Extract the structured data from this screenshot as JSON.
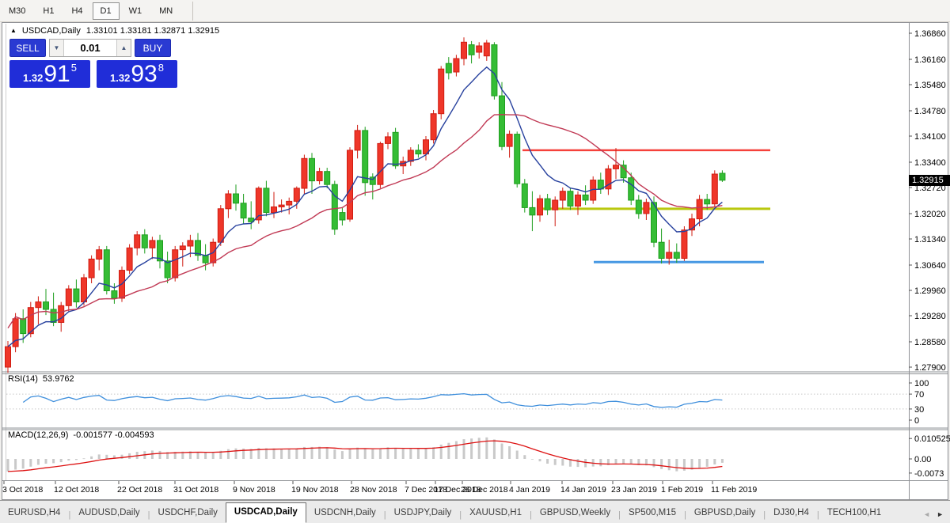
{
  "toolbar": {
    "timeframes": [
      {
        "label": "M30",
        "active": false
      },
      {
        "label": "H1",
        "active": false
      },
      {
        "label": "H4",
        "active": false
      },
      {
        "label": "D1",
        "active": true
      },
      {
        "label": "W1",
        "active": false
      },
      {
        "label": "MN",
        "active": false
      }
    ]
  },
  "header": {
    "collapse_icon": "▲",
    "symbol": "USDCAD,Daily",
    "ohlc": "1.33101 1.33181 1.32871 1.32915"
  },
  "trade_panel": {
    "sell_label": "SELL",
    "buy_label": "BUY",
    "volume": "0.01",
    "spinner_down_icon": "▼",
    "spinner_up_icon": "▲",
    "sell_price_prefix": "1.32",
    "sell_price_big": "91",
    "sell_price_sup": "5",
    "buy_price_prefix": "1.32",
    "buy_price_big": "93",
    "buy_price_sup": "8"
  },
  "price_axis": {
    "labels": [
      "1.36860",
      "1.36160",
      "1.35480",
      "1.34780",
      "1.34100",
      "1.33400",
      "1.32720",
      "1.32020",
      "1.31340",
      "1.30640",
      "1.29960",
      "1.29280",
      "1.28580",
      "1.27900"
    ],
    "current": "1.32915"
  },
  "time_axis": [
    "3 Oct 2018",
    "12 Oct 2018",
    "22 Oct 2018",
    "31 Oct 2018",
    "9 Nov 2018",
    "19 Nov 2018",
    "28 Nov 2018",
    "7 Dec 2018",
    "17 Dec 2018",
    "26 Dec 2018",
    "4 Jan 2019",
    "14 Jan 2019",
    "23 Jan 2019",
    "1 Feb 2019",
    "11 Feb 2019"
  ],
  "rsi_panel": {
    "label": "RSI(14)",
    "value": "53.9762",
    "axis": [
      "100",
      "70",
      "30",
      "0"
    ]
  },
  "macd_panel": {
    "label": "MACD(12,26,9)",
    "values": "-0.001577 -0.004593",
    "axis": [
      "0.010525",
      "0.00",
      "-0.0073"
    ]
  },
  "tabs": {
    "separator": "|",
    "scroll_left_icon": "◄",
    "scroll_right_icon": "►",
    "items": [
      {
        "label": "EURUSD,H4",
        "active": false
      },
      {
        "label": "AUDUSD,Daily",
        "active": false
      },
      {
        "label": "USDCHF,Daily",
        "active": false
      },
      {
        "label": "USDCAD,Daily",
        "active": true
      },
      {
        "label": "USDCNH,Daily",
        "active": false
      },
      {
        "label": "USDJPY,Daily",
        "active": false
      },
      {
        "label": "XAUUSD,H1",
        "active": false
      },
      {
        "label": "GBPUSD,Weekly",
        "active": false
      },
      {
        "label": "SP500,M15",
        "active": false
      },
      {
        "label": "GBPUSD,Daily",
        "active": false
      },
      {
        "label": "DJ30,H4",
        "active": false
      },
      {
        "label": "TECH100,H1",
        "active": false
      }
    ]
  },
  "chart_data": {
    "type": "candlestick",
    "symbol": "USDCAD",
    "timeframe": "Daily",
    "title": "USDCAD,Daily 1.33101 1.33181 1.32871 1.32915",
    "bull_color": "#ef3629",
    "bear_color": "#35bd35",
    "bull_border": "#cf1d12",
    "bear_border": "#1f9e1f",
    "ma_fast": {
      "period": 8,
      "color": "#27419e"
    },
    "ma_slow": {
      "period": 20,
      "color": "#c13a55"
    },
    "rsi": {
      "period": 14,
      "last": 53.9762,
      "color": "#3f8fdc",
      "levels": [
        70,
        30
      ]
    },
    "macd": {
      "fast": 12,
      "slow": 26,
      "signal": 9,
      "last_main": -0.001577,
      "last_signal": -0.004593,
      "hist_color": "#c9c9c9",
      "signal_color": "#dd1111",
      "ylim": [
        -0.0073,
        0.010525
      ]
    },
    "price_range": {
      "top": 1.3686,
      "bottom": 1.279
    },
    "last_price": 1.32915,
    "hlines": [
      {
        "name": "resistance-line",
        "color": "#f5413b",
        "price": 1.3372
      },
      {
        "name": "mid-support-line",
        "color": "#b9c80e",
        "price": 1.3215
      },
      {
        "name": "low-support-line",
        "color": "#4798e3",
        "price": 1.3072
      }
    ],
    "candles": [
      [
        1.279,
        1.286,
        1.2775,
        1.2845
      ],
      [
        1.2845,
        1.2935,
        1.283,
        1.292
      ],
      [
        1.292,
        1.2945,
        1.2855,
        1.288
      ],
      [
        1.288,
        1.2965,
        1.287,
        1.295
      ],
      [
        1.295,
        1.298,
        1.2905,
        1.2965
      ],
      [
        1.2965,
        1.3,
        1.293,
        1.2945
      ],
      [
        1.2945,
        1.299,
        1.29,
        1.291
      ],
      [
        1.291,
        1.2965,
        1.2885,
        1.2955
      ],
      [
        1.2955,
        1.301,
        1.294,
        1.3
      ],
      [
        1.3,
        1.3025,
        1.295,
        1.2965
      ],
      [
        1.2965,
        1.304,
        1.2955,
        1.303
      ],
      [
        1.303,
        1.309,
        1.3015,
        1.308
      ],
      [
        1.308,
        1.3115,
        1.305,
        1.3105
      ],
      [
        1.3105,
        1.3115,
        1.2985,
        1.2995
      ],
      [
        1.2995,
        1.3015,
        1.296,
        1.2975
      ],
      [
        1.2975,
        1.306,
        1.2965,
        1.305
      ],
      [
        1.305,
        1.312,
        1.304,
        1.311
      ],
      [
        1.311,
        1.3155,
        1.309,
        1.3145
      ],
      [
        1.3145,
        1.316,
        1.3095,
        1.311
      ],
      [
        1.311,
        1.314,
        1.308,
        1.313
      ],
      [
        1.313,
        1.3145,
        1.3055,
        1.3075
      ],
      [
        1.3075,
        1.31,
        1.3015,
        1.303
      ],
      [
        1.303,
        1.3115,
        1.302,
        1.3105
      ],
      [
        1.3105,
        1.3125,
        1.306,
        1.3115
      ],
      [
        1.3115,
        1.3145,
        1.3085,
        1.313
      ],
      [
        1.313,
        1.315,
        1.3075,
        1.309
      ],
      [
        1.309,
        1.312,
        1.305,
        1.307
      ],
      [
        1.307,
        1.3135,
        1.306,
        1.3125
      ],
      [
        1.3125,
        1.3225,
        1.3115,
        1.3215
      ],
      [
        1.3215,
        1.3265,
        1.319,
        1.3255
      ],
      [
        1.3255,
        1.328,
        1.321,
        1.323
      ],
      [
        1.323,
        1.3255,
        1.3175,
        1.319
      ],
      [
        1.319,
        1.3235,
        1.316,
        1.318
      ],
      [
        1.3185,
        1.3275,
        1.3175,
        1.327
      ],
      [
        1.327,
        1.329,
        1.3195,
        1.3205
      ],
      [
        1.3205,
        1.326,
        1.319,
        1.322
      ],
      [
        1.322,
        1.324,
        1.3205,
        1.3225
      ],
      [
        1.3225,
        1.3245,
        1.32,
        1.3235
      ],
      [
        1.3235,
        1.3275,
        1.3215,
        1.327
      ],
      [
        1.327,
        1.336,
        1.3255,
        1.335
      ],
      [
        1.335,
        1.3365,
        1.3255,
        1.329
      ],
      [
        1.329,
        1.3325,
        1.328,
        1.3315
      ],
      [
        1.3315,
        1.3325,
        1.327,
        1.328
      ],
      [
        1.328,
        1.329,
        1.3145,
        1.316
      ],
      [
        1.3205,
        1.322,
        1.317,
        1.3185
      ],
      [
        1.3187,
        1.338,
        1.318,
        1.3372
      ],
      [
        1.3372,
        1.344,
        1.335,
        1.3425
      ],
      [
        1.3425,
        1.3435,
        1.325,
        1.3285
      ],
      [
        1.33,
        1.331,
        1.324,
        1.328
      ],
      [
        1.328,
        1.3395,
        1.327,
        1.339
      ],
      [
        1.339,
        1.342,
        1.3375,
        1.3408
      ],
      [
        1.342,
        1.3432,
        1.3322,
        1.333
      ],
      [
        1.333,
        1.3355,
        1.3308,
        1.3342
      ],
      [
        1.3342,
        1.338,
        1.333,
        1.3372
      ],
      [
        1.3372,
        1.3388,
        1.3352,
        1.3362
      ],
      [
        1.3362,
        1.341,
        1.3345,
        1.34
      ],
      [
        1.34,
        1.348,
        1.339,
        1.347
      ],
      [
        1.347,
        1.3598,
        1.3455,
        1.359
      ],
      [
        1.3605,
        1.3622,
        1.3562,
        1.358
      ],
      [
        1.3582,
        1.3628,
        1.357,
        1.3618
      ],
      [
        1.3618,
        1.3675,
        1.36,
        1.3662
      ],
      [
        1.3655,
        1.3665,
        1.3605,
        1.3628
      ],
      [
        1.3635,
        1.3662,
        1.3618,
        1.3652
      ],
      [
        1.3625,
        1.3668,
        1.3612,
        1.366
      ],
      [
        1.3655,
        1.3662,
        1.3508,
        1.3518
      ],
      [
        1.3518,
        1.3555,
        1.3372,
        1.3382
      ],
      [
        1.3382,
        1.3425,
        1.3352,
        1.3415
      ],
      [
        1.3415,
        1.3422,
        1.3272,
        1.3282
      ],
      [
        1.3282,
        1.3295,
        1.3205,
        1.3218
      ],
      [
        1.3218,
        1.3262,
        1.3155,
        1.3198
      ],
      [
        1.3198,
        1.3252,
        1.318,
        1.3242
      ],
      [
        1.3242,
        1.3255,
        1.3198,
        1.3212
      ],
      [
        1.3212,
        1.3248,
        1.3168,
        1.3238
      ],
      [
        1.3238,
        1.3272,
        1.3215,
        1.3262
      ],
      [
        1.3262,
        1.3272,
        1.3212,
        1.3222
      ],
      [
        1.3222,
        1.3262,
        1.3198,
        1.3252
      ],
      [
        1.3252,
        1.3278,
        1.3225,
        1.3238
      ],
      [
        1.3238,
        1.3302,
        1.3228,
        1.3292
      ],
      [
        1.3292,
        1.3312,
        1.3255,
        1.3268
      ],
      [
        1.3268,
        1.3332,
        1.3252,
        1.3322
      ],
      [
        1.3322,
        1.3378,
        1.3295,
        1.3332
      ],
      [
        1.3332,
        1.3345,
        1.3285,
        1.3298
      ],
      [
        1.3298,
        1.3312,
        1.3225,
        1.3238
      ],
      [
        1.3238,
        1.3252,
        1.3188,
        1.3202
      ],
      [
        1.3202,
        1.3242,
        1.3185,
        1.3232
      ],
      [
        1.3232,
        1.3248,
        1.3112,
        1.3125
      ],
      [
        1.3125,
        1.3162,
        1.3068,
        1.3082
      ],
      [
        1.3082,
        1.3132,
        1.3065,
        1.3098
      ],
      [
        1.3098,
        1.3122,
        1.307,
        1.3082
      ],
      [
        1.3082,
        1.3168,
        1.3075,
        1.3158
      ],
      [
        1.3158,
        1.3202,
        1.3142,
        1.3188
      ],
      [
        1.3188,
        1.3252,
        1.3168,
        1.324
      ],
      [
        1.324,
        1.3255,
        1.3212,
        1.3228
      ],
      [
        1.3228,
        1.3318,
        1.322,
        1.3308
      ],
      [
        1.33101,
        1.33181,
        1.32871,
        1.32915
      ]
    ]
  }
}
